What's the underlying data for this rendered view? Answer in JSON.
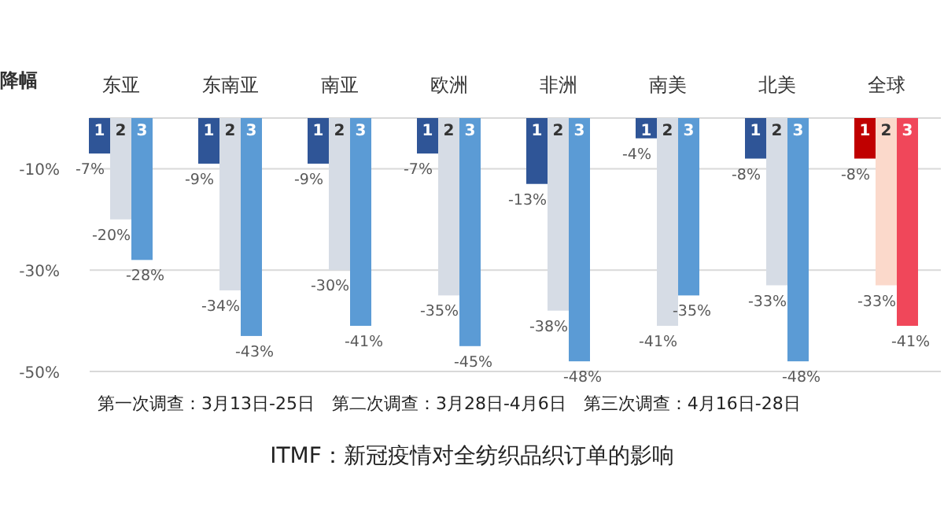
{
  "chart_data": {
    "type": "bar",
    "title": "ITMF：新冠疫情对全纺织品织订单的影响",
    "ylabel": "降幅",
    "annotations": [
      "第一次调查：3月13日-25日　第二次调查：3月28日-4月6日　第三次调查：4月16日-28日"
    ],
    "categories": [
      "东亚",
      "东南亚",
      "南亚",
      "欧洲",
      "非洲",
      "南美",
      "北美",
      "全球"
    ],
    "series": [
      {
        "name": "1",
        "colors": [
          "#2f5597",
          "#2f5597",
          "#2f5597",
          "#2f5597",
          "#2f5597",
          "#2f5597",
          "#2f5597",
          "#c00000"
        ],
        "values": [
          -7,
          -9,
          -9,
          -7,
          -13,
          -4,
          -8,
          -8
        ],
        "value_labels": [
          "-7%",
          "-9%",
          "-9%",
          "-7%",
          "-13%",
          "-4%",
          "-8%",
          "-8%"
        ]
      },
      {
        "name": "2",
        "colors": [
          "#d6dce5",
          "#d6dce5",
          "#d6dce5",
          "#d6dce5",
          "#d6dce5",
          "#d6dce5",
          "#d6dce5",
          "#fbd9cb"
        ],
        "values": [
          -20,
          -34,
          -30,
          -35,
          -38,
          -41,
          -33,
          -33
        ],
        "value_labels": [
          "-20%",
          "-34%",
          "-30%",
          "-35%",
          "-38%",
          "-41%",
          "-33%",
          "-33%"
        ]
      },
      {
        "name": "3",
        "colors": [
          "#5b9bd5",
          "#5b9bd5",
          "#5b9bd5",
          "#5b9bd5",
          "#5b9bd5",
          "#5b9bd5",
          "#5b9bd5",
          "#f0475a"
        ],
        "values": [
          -28,
          -43,
          -41,
          -45,
          -48,
          -35,
          -48,
          -41
        ],
        "value_labels": [
          "-28%",
          "-43%",
          "-41%",
          "-45%",
          "-48%",
          "-35%",
          "-48%",
          "-41%"
        ]
      }
    ],
    "ylim": [
      -50,
      0
    ],
    "yticks": [
      {
        "value": 0,
        "label": null
      },
      {
        "value": -10,
        "label": "-10%"
      },
      {
        "value": -30,
        "label": "-30%"
      },
      {
        "value": -50,
        "label": "-50%"
      }
    ],
    "grid": "y"
  }
}
